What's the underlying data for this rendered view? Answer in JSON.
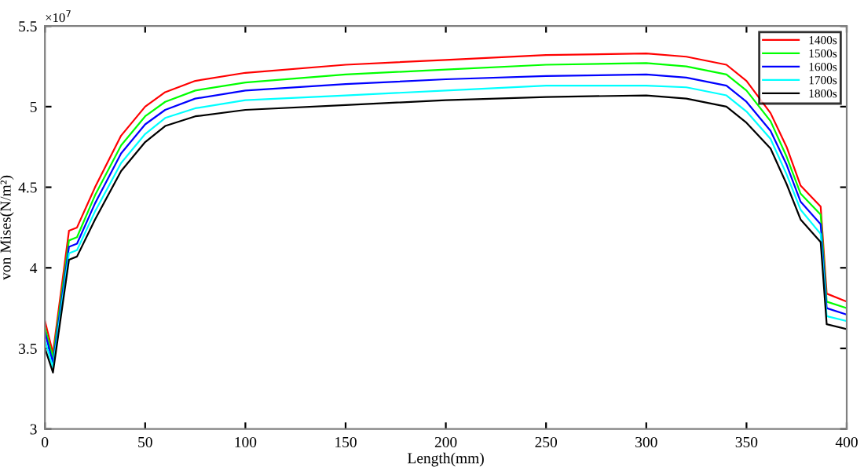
{
  "chart_data": {
    "type": "line",
    "xlabel": "Length(mm)",
    "ylabel": "von Mises(N/m²)",
    "annotations": [
      "×10$^{7}$"
    ],
    "x": [
      0,
      4,
      12,
      16,
      25,
      38,
      50,
      60,
      75,
      100,
      150,
      200,
      250,
      300,
      320,
      340,
      350,
      362,
      370,
      377,
      387,
      390,
      400
    ],
    "series": [
      {
        "name": "1400s",
        "color": "#ff0000",
        "values": [
          3.67,
          3.47,
          4.23,
          4.25,
          4.5,
          4.82,
          5.0,
          5.09,
          5.16,
          5.21,
          5.26,
          5.29,
          5.32,
          5.33,
          5.31,
          5.26,
          5.16,
          4.96,
          4.75,
          4.51,
          4.38,
          3.84,
          3.79
        ]
      },
      {
        "name": "1500s",
        "color": "#00ff00",
        "values": [
          3.63,
          3.44,
          4.17,
          4.19,
          4.45,
          4.76,
          4.94,
          5.03,
          5.1,
          5.15,
          5.2,
          5.23,
          5.26,
          5.27,
          5.25,
          5.2,
          5.1,
          4.91,
          4.69,
          4.46,
          4.33,
          3.79,
          3.75
        ]
      },
      {
        "name": "1600s",
        "color": "#0000ff",
        "values": [
          3.6,
          3.41,
          4.13,
          4.15,
          4.4,
          4.71,
          4.89,
          4.98,
          5.05,
          5.1,
          5.14,
          5.17,
          5.19,
          5.2,
          5.18,
          5.13,
          5.03,
          4.85,
          4.64,
          4.41,
          4.27,
          3.75,
          3.71
        ]
      },
      {
        "name": "1700s",
        "color": "#00ffff",
        "values": [
          3.55,
          3.38,
          4.09,
          4.11,
          4.35,
          4.65,
          4.83,
          4.93,
          4.99,
          5.04,
          5.07,
          5.1,
          5.13,
          5.13,
          5.12,
          5.07,
          4.97,
          4.8,
          4.58,
          4.36,
          4.21,
          3.7,
          3.67
        ]
      },
      {
        "name": "1800s",
        "color": "#000000",
        "values": [
          3.5,
          3.35,
          4.05,
          4.07,
          4.3,
          4.6,
          4.78,
          4.88,
          4.94,
          4.98,
          5.01,
          5.04,
          5.06,
          5.07,
          5.05,
          5.0,
          4.9,
          4.74,
          4.52,
          4.3,
          4.16,
          3.65,
          3.62
        ]
      }
    ],
    "xlim": [
      0,
      400
    ],
    "xticks": [
      0,
      50,
      100,
      150,
      200,
      250,
      300,
      350,
      400
    ],
    "ylim": [
      3,
      5.5
    ],
    "yticks": [
      3,
      3.5,
      4,
      4.5,
      5,
      5.5
    ],
    "grid": false,
    "legend": "top right",
    "marker": "none",
    "line_style": "solid"
  }
}
